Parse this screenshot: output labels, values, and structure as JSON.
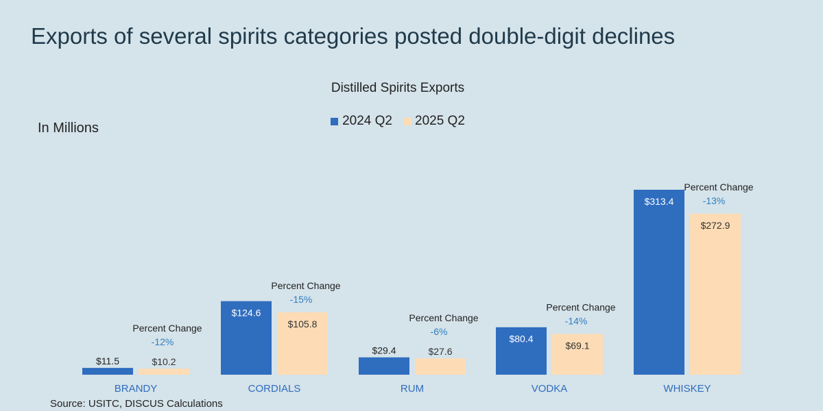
{
  "headline": "Exports of several spirits categories posted double-digit declines",
  "units_label": "In Millions",
  "source": "Source: USITC, DISCUS Calculations",
  "colors": {
    "series_2024": "#2f6dbf",
    "series_2025": "#fddcb5",
    "category_text": "#2f6dbf",
    "percent_text": "#2f7fc0"
  },
  "chart_data": {
    "type": "bar",
    "title": "Distilled Spirits Exports",
    "categories": [
      "BRANDY",
      "CORDIALS",
      "RUM",
      "VODKA",
      "WHISKEY"
    ],
    "series": [
      {
        "name": "2024 Q2",
        "values": [
          11.5,
          124.6,
          29.4,
          80.4,
          313.4
        ],
        "labels": [
          "$11.5",
          "$124.6",
          "$29.4",
          "$80.4",
          "$313.4"
        ]
      },
      {
        "name": "2025 Q2",
        "values": [
          10.2,
          105.8,
          27.6,
          69.1,
          272.9
        ],
        "labels": [
          "$10.2",
          "$105.8",
          "$27.6",
          "$69.1",
          "$272.9"
        ]
      }
    ],
    "annotations": [
      {
        "category": "BRANDY",
        "label": "Percent Change",
        "value": "-12%"
      },
      {
        "category": "CORDIALS",
        "label": "Percent Change",
        "value": "-15%"
      },
      {
        "category": "RUM",
        "label": "Percent Change",
        "value": "-6%"
      },
      {
        "category": "VODKA",
        "label": "Percent Change",
        "value": "-14%"
      },
      {
        "category": "WHISKEY",
        "label": "Percent Change",
        "value": "-13%"
      }
    ],
    "xlabel": "",
    "ylabel": "",
    "ylim": [
      0,
      313.4
    ],
    "grid": false,
    "legend_position": "top-center"
  }
}
